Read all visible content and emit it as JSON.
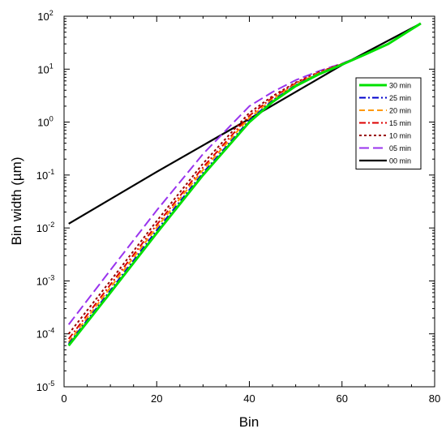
{
  "chart_data": {
    "type": "line",
    "title": "",
    "xlabel": "Bin",
    "ylabel": "Bin width (µm)",
    "xlim": [
      0,
      80
    ],
    "ylim": [
      1e-05,
      100
    ],
    "y_scale": "log",
    "x_ticks": [
      0,
      20,
      40,
      60,
      80
    ],
    "x_tick_labels": [
      "0",
      "20",
      "40",
      "60",
      "80"
    ],
    "y_ticks": [
      -5,
      -4,
      -3,
      -2,
      -1,
      0,
      1,
      2
    ],
    "y_tick_base": "10",
    "y_tick_exponents": [
      "-5",
      "-4",
      "-3",
      "-2",
      "-1",
      "0",
      "1",
      "2"
    ],
    "grid": false,
    "legend_position": "right",
    "series": [
      {
        "name": "30 min",
        "color": "#00e000",
        "style": "solid-thick",
        "x": [
          1,
          10,
          20,
          30,
          40,
          45,
          50,
          55,
          60,
          65,
          70,
          77
        ],
        "y": [
          6e-05,
          0.0006,
          0.008,
          0.1,
          1.0,
          2.4,
          4.8,
          8.0,
          12.2,
          19.0,
          30.0,
          73
        ]
      },
      {
        "name": "25 min",
        "color": "#0000cc",
        "style": "dash-dot",
        "x": [
          1,
          10,
          20,
          30,
          40,
          45,
          50,
          55,
          60,
          65,
          70,
          77
        ],
        "y": [
          6.5e-05,
          0.00066,
          0.009,
          0.11,
          1.08,
          2.55,
          5.0,
          8.2,
          12.3,
          19.0,
          30.0,
          73
        ]
      },
      {
        "name": "20 min",
        "color": "#ff9900",
        "style": "dash",
        "x": [
          1,
          10,
          20,
          30,
          40,
          45,
          50,
          55,
          60,
          65,
          70,
          77
        ],
        "y": [
          7e-05,
          0.00075,
          0.0102,
          0.125,
          1.2,
          2.7,
          5.2,
          8.4,
          12.4,
          19.0,
          30.0,
          73
        ]
      },
      {
        "name": "15 min",
        "color": "#dd0000",
        "style": "dash-dot",
        "x": [
          1,
          10,
          20,
          30,
          40,
          45,
          50,
          55,
          60,
          65,
          70,
          77
        ],
        "y": [
          8e-05,
          0.00085,
          0.0115,
          0.14,
          1.32,
          2.9,
          5.4,
          8.6,
          12.5,
          19.0,
          30.0,
          73
        ]
      },
      {
        "name": "10 min",
        "color": "#990000",
        "style": "dot",
        "x": [
          1,
          10,
          20,
          30,
          40,
          45,
          50,
          55,
          60,
          65,
          70,
          77
        ],
        "y": [
          0.0001,
          0.001,
          0.0135,
          0.165,
          1.5,
          3.1,
          5.6,
          8.8,
          12.6,
          19.0,
          30.0,
          73
        ]
      },
      {
        "name": "05 min",
        "color": "#9933ee",
        "style": "long-dash",
        "x": [
          1,
          10,
          20,
          30,
          40,
          45,
          50,
          55,
          60,
          65,
          70,
          77
        ],
        "y": [
          0.00015,
          0.0016,
          0.0215,
          0.25,
          2.0,
          3.7,
          6.2,
          9.2,
          12.8,
          19.2,
          30.0,
          73
        ]
      },
      {
        "name": "00 min",
        "color": "#000000",
        "style": "solid",
        "x": [
          1,
          20,
          40,
          60,
          77
        ],
        "y": [
          0.012,
          0.115,
          1.15,
          12.0,
          73
        ]
      }
    ]
  }
}
